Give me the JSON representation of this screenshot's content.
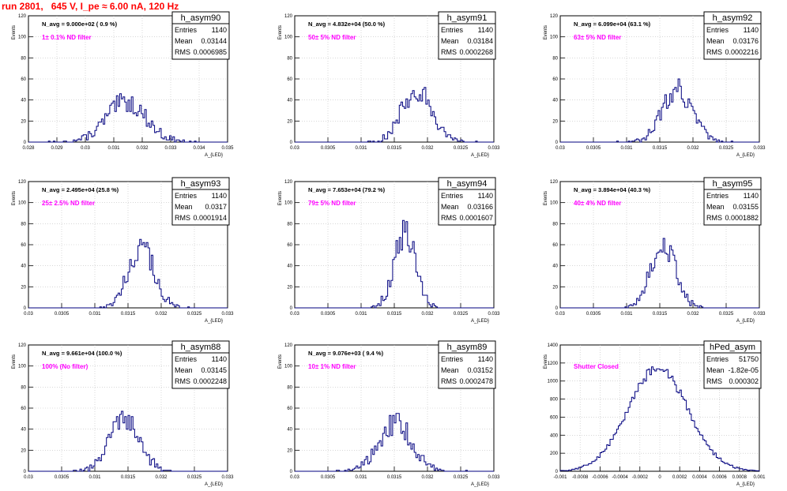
{
  "run_title": "run 2801,   645 V, I_pe ≈ 6.00 nA, 120 Hz",
  "colors": {
    "hist_line": "#00007f",
    "filter_text": "#ff00ff",
    "title_red": "#ff0000",
    "grid": "#bfbfbf"
  },
  "chart_data": [
    {
      "type": "histogram",
      "hist_name": "h_asym90",
      "navg": "N_avg = 9.000e+02 ( 0.9 %)",
      "filter": "1± 0.1% ND filter",
      "stats": {
        "entries": "1140",
        "mean": "0.03144",
        "rms": "0.0006985"
      },
      "xlabel": "A_{LED}",
      "ylabel": "Events",
      "xlim": [
        0.028,
        0.035
      ],
      "ylim": [
        0,
        120
      ],
      "xticks": [
        "0.028",
        "0.029",
        "0.03",
        "0.031",
        "0.032",
        "0.033",
        "0.034",
        "0.035"
      ],
      "yticks": [
        "0",
        "20",
        "40",
        "60",
        "80",
        "100",
        "120"
      ],
      "grid": true,
      "mean": 0.03144,
      "rms": 0.0006985,
      "entries": 1140
    },
    {
      "type": "histogram",
      "hist_name": "h_asym91",
      "navg": "N_avg = 4.832e+04 (50.0 %)",
      "filter": "50± 5% ND filter",
      "stats": {
        "entries": "1140",
        "mean": "0.03184",
        "rms": "0.0002268"
      },
      "xlabel": "A_{LED}",
      "ylabel": "Events",
      "xlim": [
        0.03,
        0.033
      ],
      "ylim": [
        0,
        120
      ],
      "xticks": [
        "0.03",
        "0.0305",
        "0.031",
        "0.0315",
        "0.032",
        "0.0325",
        "0.033"
      ],
      "yticks": [
        "0",
        "20",
        "40",
        "60",
        "80",
        "100",
        "120"
      ],
      "grid": true,
      "mean": 0.03184,
      "rms": 0.0002268,
      "entries": 1140
    },
    {
      "type": "histogram",
      "hist_name": "h_asym92",
      "navg": "N_avg = 6.099e+04 (63.1 %)",
      "filter": "63± 5% ND filter",
      "stats": {
        "entries": "1140",
        "mean": "0.03176",
        "rms": "0.0002216"
      },
      "xlabel": "A_{LED}",
      "ylabel": "Events",
      "xlim": [
        0.03,
        0.033
      ],
      "ylim": [
        0,
        120
      ],
      "xticks": [
        "0.03",
        "0.0305",
        "0.031",
        "0.0315",
        "0.032",
        "0.0325",
        "0.033"
      ],
      "yticks": [
        "0",
        "20",
        "40",
        "60",
        "80",
        "100",
        "120"
      ],
      "grid": true,
      "mean": 0.03176,
      "rms": 0.0002216,
      "entries": 1140
    },
    {
      "type": "histogram",
      "hist_name": "h_asym93",
      "navg": "N_avg = 2.495e+04 (25.8 %)",
      "filter": "25± 2.5% ND filter",
      "stats": {
        "entries": "1140",
        "mean": "0.0317",
        "rms": "0.0001914"
      },
      "xlabel": "A_{LED}",
      "ylabel": "Events",
      "xlim": [
        0.03,
        0.033
      ],
      "ylim": [
        0,
        120
      ],
      "xticks": [
        "0.03",
        "0.0305",
        "0.031",
        "0.0315",
        "0.032",
        "0.0325",
        "0.033"
      ],
      "yticks": [
        "0",
        "20",
        "40",
        "60",
        "80",
        "100",
        "120"
      ],
      "grid": true,
      "mean": 0.0317,
      "rms": 0.0001914,
      "entries": 1140
    },
    {
      "type": "histogram",
      "hist_name": "h_asym94",
      "navg": "N_avg = 7.653e+04 (79.2 %)",
      "filter": "79± 5% ND filter",
      "stats": {
        "entries": "1140",
        "mean": "0.03166",
        "rms": "0.0001607"
      },
      "xlabel": "A_{LED}",
      "ylabel": "Events",
      "xlim": [
        0.03,
        0.033
      ],
      "ylim": [
        0,
        120
      ],
      "xticks": [
        "0.03",
        "0.0305",
        "0.031",
        "0.0315",
        "0.032",
        "0.0325",
        "0.033"
      ],
      "yticks": [
        "0",
        "20",
        "40",
        "60",
        "80",
        "100",
        "120"
      ],
      "grid": true,
      "mean": 0.03166,
      "rms": 0.0001607,
      "entries": 1140
    },
    {
      "type": "histogram",
      "hist_name": "h_asym95",
      "navg": "N_avg = 3.894e+04 (40.3 %)",
      "filter": "40± 4% ND filter",
      "stats": {
        "entries": "1140",
        "mean": "0.03155",
        "rms": "0.0001882"
      },
      "xlabel": "A_{LED}",
      "ylabel": "Events",
      "xlim": [
        0.03,
        0.033
      ],
      "ylim": [
        0,
        120
      ],
      "xticks": [
        "0.03",
        "0.0305",
        "0.031",
        "0.0315",
        "0.032",
        "0.0325",
        "0.033"
      ],
      "yticks": [
        "0",
        "20",
        "40",
        "60",
        "80",
        "100",
        "120"
      ],
      "grid": true,
      "mean": 0.03155,
      "rms": 0.0001882,
      "entries": 1140
    },
    {
      "type": "histogram",
      "hist_name": "h_asym88",
      "navg": "N_avg = 9.661e+04 (100.0 %)",
      "filter": "100% (No filter)",
      "stats": {
        "entries": "1140",
        "mean": "0.03145",
        "rms": "0.0002248"
      },
      "xlabel": "A_{LED}",
      "ylabel": "Events",
      "xlim": [
        0.03,
        0.033
      ],
      "ylim": [
        0,
        120
      ],
      "xticks": [
        "0.03",
        "0.0305",
        "0.031",
        "0.0315",
        "0.032",
        "0.0325",
        "0.033"
      ],
      "yticks": [
        "0",
        "20",
        "40",
        "60",
        "80",
        "100",
        "120"
      ],
      "grid": true,
      "mean": 0.03145,
      "rms": 0.0002248,
      "entries": 1140
    },
    {
      "type": "histogram",
      "hist_name": "h_asym89",
      "navg": "N_avg = 9.076e+03 ( 9.4 %)",
      "filter": "10± 1% ND filter",
      "stats": {
        "entries": "1140",
        "mean": "0.03152",
        "rms": "0.0002478"
      },
      "xlabel": "A_{LED}",
      "ylabel": "Events",
      "xlim": [
        0.03,
        0.033
      ],
      "ylim": [
        0,
        120
      ],
      "xticks": [
        "0.03",
        "0.0305",
        "0.031",
        "0.0315",
        "0.032",
        "0.0325",
        "0.033"
      ],
      "yticks": [
        "0",
        "20",
        "40",
        "60",
        "80",
        "100",
        "120"
      ],
      "grid": true,
      "mean": 0.03152,
      "rms": 0.0002478,
      "entries": 1140
    },
    {
      "type": "histogram",
      "hist_name": "hPed_asym",
      "navg": "",
      "filter": "Shutter Closed",
      "stats": {
        "entries": "51750",
        "mean": "-1.82e-05",
        "rms": "0.000302"
      },
      "xlabel": "A_{LED}",
      "ylabel": "Events",
      "xlim": [
        -0.001,
        0.001
      ],
      "ylim": [
        0,
        1400
      ],
      "xticks": [
        "-0.001",
        "-0.0008",
        "-0.0006",
        "-0.0004",
        "-0.0002",
        "0",
        "0.0002",
        "0.0004",
        "0.0006",
        "0.0008",
        "0.001"
      ],
      "yticks": [
        "0",
        "200",
        "400",
        "600",
        "800",
        "1000",
        "1200",
        "1400"
      ],
      "grid": true,
      "mean": -1.82e-05,
      "rms": 0.000302,
      "entries": 51750
    }
  ]
}
